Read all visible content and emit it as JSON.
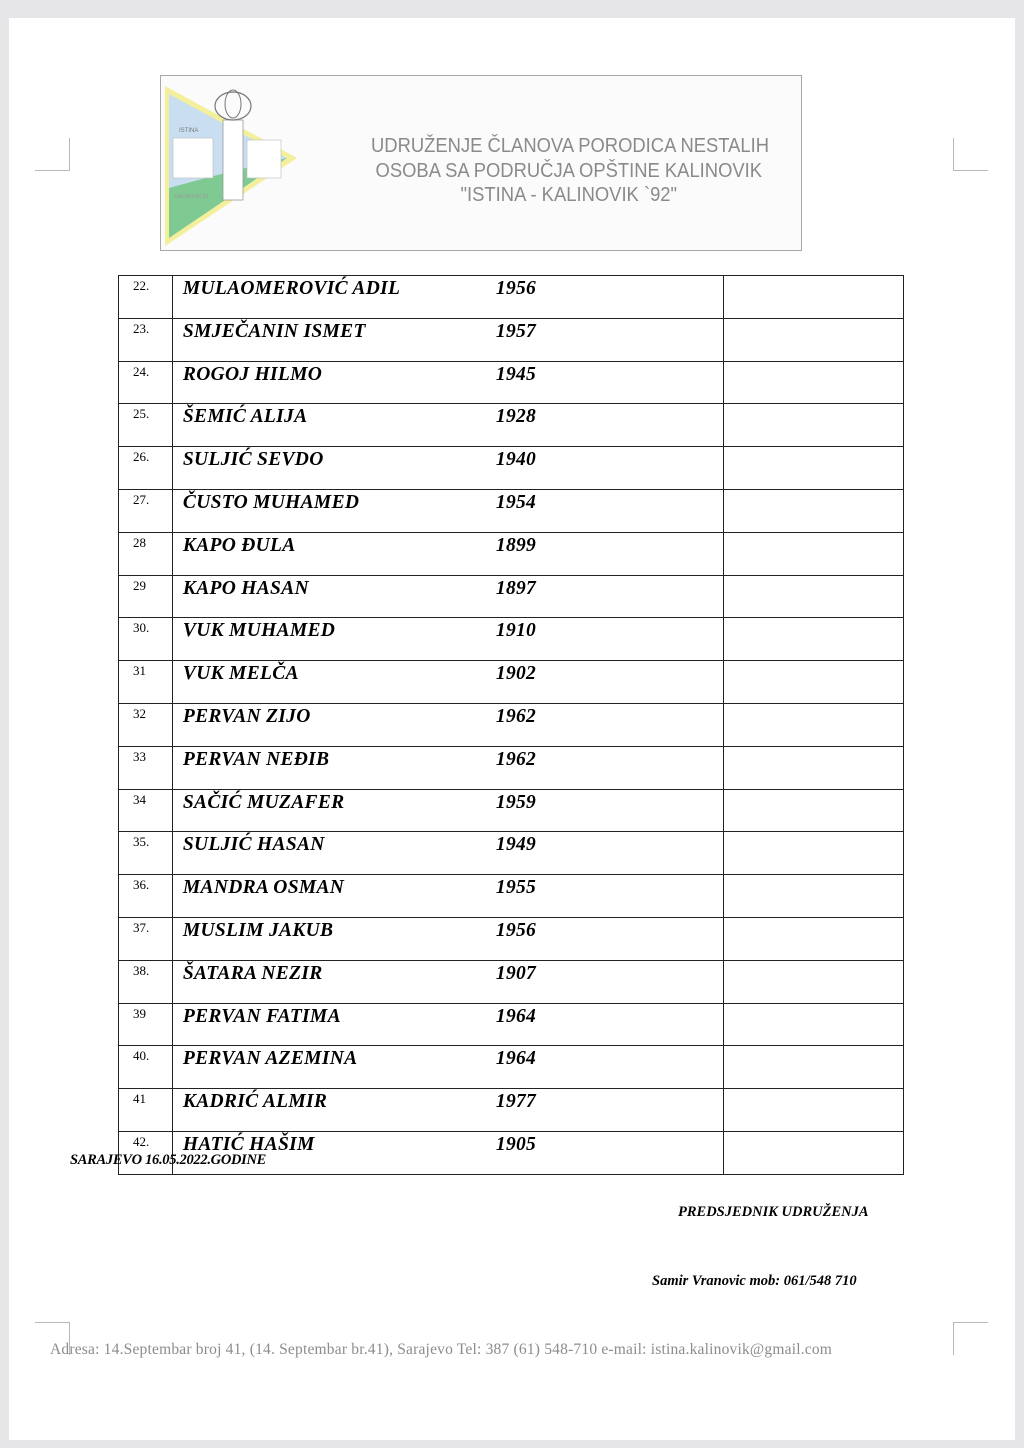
{
  "header": {
    "line1": "UDRUŽENJE ČLANOVA PORODICA NESTALIH",
    "line2": "OSOBA SA PODRUČJA OPŠTINE KALINOVIK",
    "line3": "\"ISTINA - KALINOVIK `92\"",
    "logo_text_top": "ISTINA",
    "logo_text_bottom": "KALINOVIK 92"
  },
  "rows": [
    {
      "no": "22.",
      "name": "MULAOMEROVIĆ ADIL",
      "year": "1956"
    },
    {
      "no": "23.",
      "name": "SMJEČANIN ISMET",
      "year": "1957"
    },
    {
      "no": "24.",
      "name": "ROGOJ HILMO",
      "year": "1945"
    },
    {
      "no": "25.",
      "name": "ŠEMIĆ ALIJA",
      "year": "1928"
    },
    {
      "no": "26.",
      "name": "SULJIĆ SEVDO",
      "year": "1940"
    },
    {
      "no": "27.",
      "name": "ČUSTO MUHAMED",
      "year": "1954"
    },
    {
      "no": "28",
      "name": "KAPO ĐULA",
      "year": "1899"
    },
    {
      "no": "29",
      "name": "KAPO HASAN",
      "year": "1897"
    },
    {
      "no": "30.",
      "name": "VUK MUHAMED",
      "year": "1910"
    },
    {
      "no": "31",
      "name": "VUK MELČA",
      "year": "1902"
    },
    {
      "no": "32",
      "name": "PERVAN ZIJO",
      "year": "1962"
    },
    {
      "no": "33",
      "name": "PERVAN NEĐIB",
      "year": "1962"
    },
    {
      "no": "34",
      "name": "SAČIĆ MUZAFER",
      "year": "1959"
    },
    {
      "no": "35.",
      "name": "SULJIĆ HASAN",
      "year": "1949"
    },
    {
      "no": "36.",
      "name": "MANDRA OSMAN",
      "year": "1955"
    },
    {
      "no": "37.",
      "name": "MUSLIM JAKUB",
      "year": "1956"
    },
    {
      "no": "38.",
      "name": "ŠATARA NEZIR",
      "year": "1907"
    },
    {
      "no": "39",
      "name": "PERVAN FATIMA",
      "year": "1964"
    },
    {
      "no": "40.",
      "name": "PERVAN AZEMINA",
      "year": "1964"
    },
    {
      "no": "41",
      "name": "KADRIĆ ALMIR",
      "year": "1977"
    },
    {
      "no": "42.",
      "name": "HATIĆ HAŠIM",
      "year": "1905"
    }
  ],
  "date_line": "SARAJEVO 16.05.2022.GODINE",
  "president_label": "PREDSJEDNIK UDRUŽENJA",
  "signature": "Samir Vranovic mob: 061/548 710",
  "footer": "Adresa: 14.Septembar broj 41, (14. Septembar br.41), Sarajevo   Tel: 387 (61) 548-710  e-mail: istina.kalinovik@gmail.com"
}
